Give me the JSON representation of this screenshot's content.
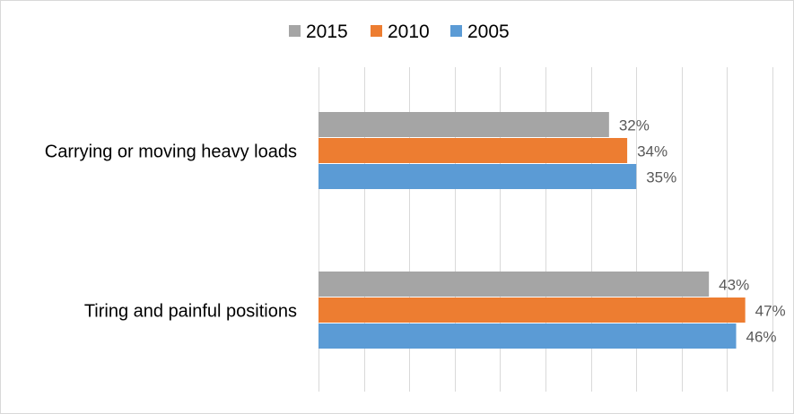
{
  "chart_data": {
    "type": "bar",
    "orientation": "horizontal",
    "categories": [
      "Carrying or moving heavy loads",
      "Tiring and painful positions"
    ],
    "series": [
      {
        "name": "2015",
        "color": "#a5a5a5",
        "values": [
          32,
          43
        ],
        "labels": [
          "32%",
          "43%"
        ]
      },
      {
        "name": "2010",
        "color": "#ed7d31",
        "values": [
          34,
          47
        ],
        "labels": [
          "34%",
          "47%"
        ]
      },
      {
        "name": "2005",
        "color": "#5b9bd5",
        "values": [
          35,
          46
        ],
        "labels": [
          "35%",
          "46%"
        ]
      }
    ],
    "xlim": [
      0,
      50
    ],
    "x_unit": "%",
    "grid": true,
    "legend_position": "top",
    "title": "",
    "xlabel": "",
    "ylabel": ""
  }
}
